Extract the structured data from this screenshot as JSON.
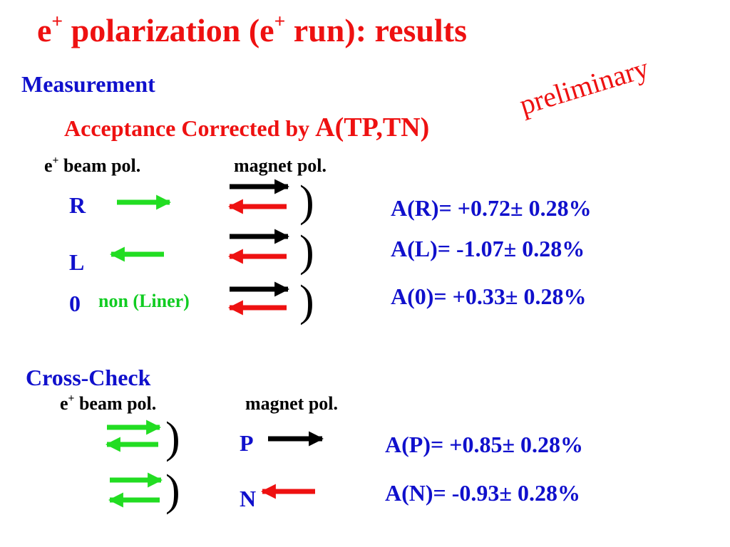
{
  "title": {
    "main": "e",
    "sup": "+",
    "rest1": " polarization (e",
    "sup2": "+",
    "rest2": " run): results"
  },
  "preliminary": "preliminary",
  "measurement": {
    "heading": "Measurement",
    "acceptance_label": "Acceptance Corrected by ",
    "acceptance_func": "A(TP,TN)",
    "col_beam": {
      "main": "e",
      "sup": "+",
      "rest": " beam pol."
    },
    "col_magnet": "magnet pol.",
    "rows": [
      {
        "label": "R",
        "result": "A(R)= +0.72± 0.28%"
      },
      {
        "label": "L",
        "result": "A(L)= -1.07± 0.28%"
      },
      {
        "label": "0",
        "sublabel": "non (Liner)",
        "result": "A(0)= +0.33± 0.28%"
      }
    ]
  },
  "crosscheck": {
    "heading": "Cross-Check",
    "col_beam": {
      "main": "e",
      "sup": "+",
      "rest": " beam pol."
    },
    "col_magnet": "magnet pol.",
    "rows": [
      {
        "label": "P",
        "result": "A(P)= +0.85± 0.28%"
      },
      {
        "label": "N",
        "result": "A(N)= -0.93± 0.28%"
      }
    ]
  },
  "paren": ")",
  "colors": {
    "green_arrow": "#22dd22",
    "red_arrow": "#ee1111",
    "black_arrow": "#000000",
    "blue_text": "#1010cc",
    "red_text": "#ee1111"
  }
}
